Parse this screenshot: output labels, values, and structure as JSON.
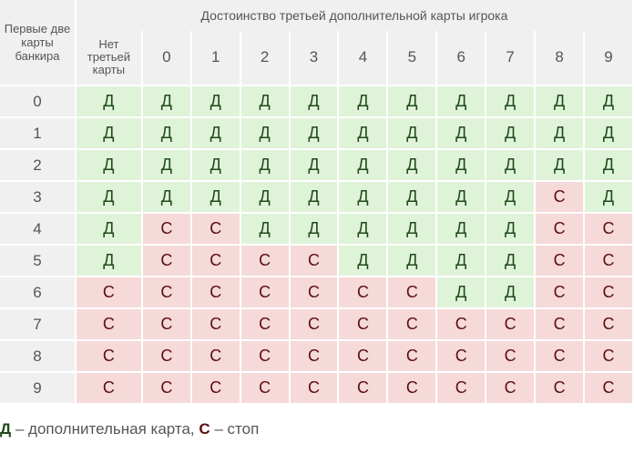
{
  "corner_label": "Первые две карты банкира",
  "top_header": "Достоинство третьей дополнительной карты игрока",
  "columns": [
    "Нет третьей карты",
    "0",
    "1",
    "2",
    "3",
    "4",
    "5",
    "6",
    "7",
    "8",
    "9"
  ],
  "rows": [
    {
      "label": "0",
      "cells": [
        "Д",
        "Д",
        "Д",
        "Д",
        "Д",
        "Д",
        "Д",
        "Д",
        "Д",
        "Д",
        "Д"
      ]
    },
    {
      "label": "1",
      "cells": [
        "Д",
        "Д",
        "Д",
        "Д",
        "Д",
        "Д",
        "Д",
        "Д",
        "Д",
        "Д",
        "Д"
      ]
    },
    {
      "label": "2",
      "cells": [
        "Д",
        "Д",
        "Д",
        "Д",
        "Д",
        "Д",
        "Д",
        "Д",
        "Д",
        "Д",
        "Д"
      ]
    },
    {
      "label": "3",
      "cells": [
        "Д",
        "Д",
        "Д",
        "Д",
        "Д",
        "Д",
        "Д",
        "Д",
        "Д",
        "С",
        "Д"
      ]
    },
    {
      "label": "4",
      "cells": [
        "Д",
        "С",
        "С",
        "Д",
        "Д",
        "Д",
        "Д",
        "Д",
        "Д",
        "С",
        "С"
      ]
    },
    {
      "label": "5",
      "cells": [
        "Д",
        "С",
        "С",
        "С",
        "С",
        "Д",
        "Д",
        "Д",
        "Д",
        "С",
        "С"
      ]
    },
    {
      "label": "6",
      "cells": [
        "С",
        "С",
        "С",
        "С",
        "С",
        "С",
        "С",
        "Д",
        "Д",
        "С",
        "С"
      ]
    },
    {
      "label": "7",
      "cells": [
        "С",
        "С",
        "С",
        "С",
        "С",
        "С",
        "С",
        "С",
        "С",
        "С",
        "С"
      ]
    },
    {
      "label": "8",
      "cells": [
        "С",
        "С",
        "С",
        "С",
        "С",
        "С",
        "С",
        "С",
        "С",
        "С",
        "С"
      ]
    },
    {
      "label": "9",
      "cells": [
        "С",
        "С",
        "С",
        "С",
        "С",
        "С",
        "С",
        "С",
        "С",
        "С",
        "С"
      ]
    }
  ],
  "legend": {
    "draw_symbol": "Д",
    "draw_text": " – дополнительная карта, ",
    "stop_symbol": "С",
    "stop_text": " – стоп"
  },
  "colors": {
    "draw_bg": "#dff3d9",
    "stop_bg": "#f6d9d9",
    "header_bg": "#f0f0f0"
  }
}
